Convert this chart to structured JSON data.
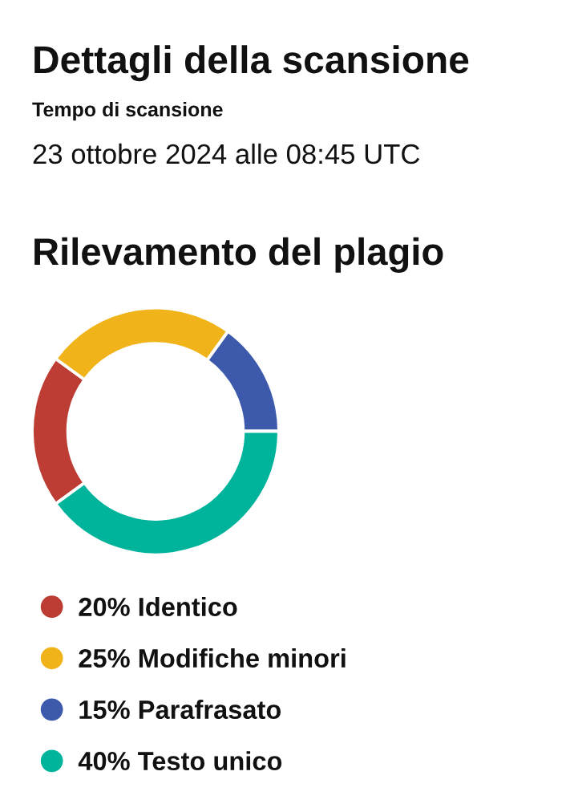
{
  "chart_data": {
    "type": "donut",
    "title": "Rilevamento del plagio",
    "annotations": [
      "Dettagli della scansione",
      "Tempo di scansione",
      "23 ottobre 2024 alle 08:45 UTC"
    ],
    "categories": [
      "Identico",
      "Modifiche minori",
      "Parafrasato",
      "Testo unico"
    ],
    "values": [
      20,
      25,
      15,
      40
    ],
    "value_labels": [
      "20%",
      "25%",
      "15%",
      "40%"
    ],
    "colors": [
      "#bd3c33",
      "#f0b31a",
      "#3d59ab",
      "#00b39b"
    ],
    "legend": "bottom"
  }
}
